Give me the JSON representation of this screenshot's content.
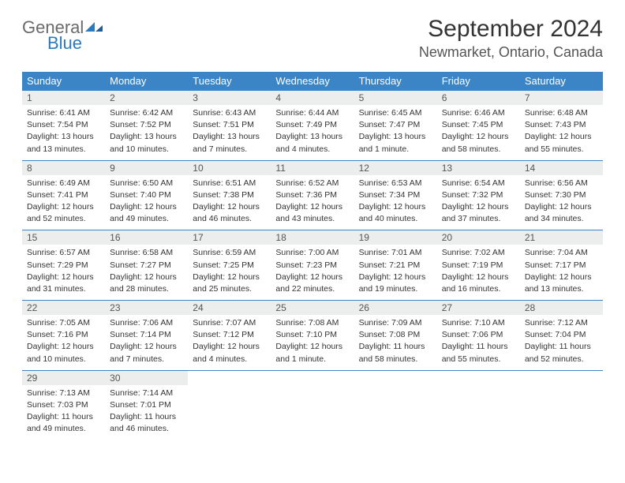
{
  "brand": {
    "general": "General",
    "blue": "Blue"
  },
  "title": "September 2024",
  "location": "Newmarket, Ontario, Canada",
  "weekdays": [
    "Sunday",
    "Monday",
    "Tuesday",
    "Wednesday",
    "Thursday",
    "Friday",
    "Saturday"
  ],
  "colors": {
    "header_bg": "#3b85c6",
    "header_text": "#ffffff",
    "daynum_bg": "#eceded",
    "border": "#3b85c6",
    "text": "#333333"
  },
  "weeks": [
    [
      {
        "n": "1",
        "sr": "Sunrise: 6:41 AM",
        "ss": "Sunset: 7:54 PM",
        "d1": "Daylight: 13 hours",
        "d2": "and 13 minutes."
      },
      {
        "n": "2",
        "sr": "Sunrise: 6:42 AM",
        "ss": "Sunset: 7:52 PM",
        "d1": "Daylight: 13 hours",
        "d2": "and 10 minutes."
      },
      {
        "n": "3",
        "sr": "Sunrise: 6:43 AM",
        "ss": "Sunset: 7:51 PM",
        "d1": "Daylight: 13 hours",
        "d2": "and 7 minutes."
      },
      {
        "n": "4",
        "sr": "Sunrise: 6:44 AM",
        "ss": "Sunset: 7:49 PM",
        "d1": "Daylight: 13 hours",
        "d2": "and 4 minutes."
      },
      {
        "n": "5",
        "sr": "Sunrise: 6:45 AM",
        "ss": "Sunset: 7:47 PM",
        "d1": "Daylight: 13 hours",
        "d2": "and 1 minute."
      },
      {
        "n": "6",
        "sr": "Sunrise: 6:46 AM",
        "ss": "Sunset: 7:45 PM",
        "d1": "Daylight: 12 hours",
        "d2": "and 58 minutes."
      },
      {
        "n": "7",
        "sr": "Sunrise: 6:48 AM",
        "ss": "Sunset: 7:43 PM",
        "d1": "Daylight: 12 hours",
        "d2": "and 55 minutes."
      }
    ],
    [
      {
        "n": "8",
        "sr": "Sunrise: 6:49 AM",
        "ss": "Sunset: 7:41 PM",
        "d1": "Daylight: 12 hours",
        "d2": "and 52 minutes."
      },
      {
        "n": "9",
        "sr": "Sunrise: 6:50 AM",
        "ss": "Sunset: 7:40 PM",
        "d1": "Daylight: 12 hours",
        "d2": "and 49 minutes."
      },
      {
        "n": "10",
        "sr": "Sunrise: 6:51 AM",
        "ss": "Sunset: 7:38 PM",
        "d1": "Daylight: 12 hours",
        "d2": "and 46 minutes."
      },
      {
        "n": "11",
        "sr": "Sunrise: 6:52 AM",
        "ss": "Sunset: 7:36 PM",
        "d1": "Daylight: 12 hours",
        "d2": "and 43 minutes."
      },
      {
        "n": "12",
        "sr": "Sunrise: 6:53 AM",
        "ss": "Sunset: 7:34 PM",
        "d1": "Daylight: 12 hours",
        "d2": "and 40 minutes."
      },
      {
        "n": "13",
        "sr": "Sunrise: 6:54 AM",
        "ss": "Sunset: 7:32 PM",
        "d1": "Daylight: 12 hours",
        "d2": "and 37 minutes."
      },
      {
        "n": "14",
        "sr": "Sunrise: 6:56 AM",
        "ss": "Sunset: 7:30 PM",
        "d1": "Daylight: 12 hours",
        "d2": "and 34 minutes."
      }
    ],
    [
      {
        "n": "15",
        "sr": "Sunrise: 6:57 AM",
        "ss": "Sunset: 7:29 PM",
        "d1": "Daylight: 12 hours",
        "d2": "and 31 minutes."
      },
      {
        "n": "16",
        "sr": "Sunrise: 6:58 AM",
        "ss": "Sunset: 7:27 PM",
        "d1": "Daylight: 12 hours",
        "d2": "and 28 minutes."
      },
      {
        "n": "17",
        "sr": "Sunrise: 6:59 AM",
        "ss": "Sunset: 7:25 PM",
        "d1": "Daylight: 12 hours",
        "d2": "and 25 minutes."
      },
      {
        "n": "18",
        "sr": "Sunrise: 7:00 AM",
        "ss": "Sunset: 7:23 PM",
        "d1": "Daylight: 12 hours",
        "d2": "and 22 minutes."
      },
      {
        "n": "19",
        "sr": "Sunrise: 7:01 AM",
        "ss": "Sunset: 7:21 PM",
        "d1": "Daylight: 12 hours",
        "d2": "and 19 minutes."
      },
      {
        "n": "20",
        "sr": "Sunrise: 7:02 AM",
        "ss": "Sunset: 7:19 PM",
        "d1": "Daylight: 12 hours",
        "d2": "and 16 minutes."
      },
      {
        "n": "21",
        "sr": "Sunrise: 7:04 AM",
        "ss": "Sunset: 7:17 PM",
        "d1": "Daylight: 12 hours",
        "d2": "and 13 minutes."
      }
    ],
    [
      {
        "n": "22",
        "sr": "Sunrise: 7:05 AM",
        "ss": "Sunset: 7:16 PM",
        "d1": "Daylight: 12 hours",
        "d2": "and 10 minutes."
      },
      {
        "n": "23",
        "sr": "Sunrise: 7:06 AM",
        "ss": "Sunset: 7:14 PM",
        "d1": "Daylight: 12 hours",
        "d2": "and 7 minutes."
      },
      {
        "n": "24",
        "sr": "Sunrise: 7:07 AM",
        "ss": "Sunset: 7:12 PM",
        "d1": "Daylight: 12 hours",
        "d2": "and 4 minutes."
      },
      {
        "n": "25",
        "sr": "Sunrise: 7:08 AM",
        "ss": "Sunset: 7:10 PM",
        "d1": "Daylight: 12 hours",
        "d2": "and 1 minute."
      },
      {
        "n": "26",
        "sr": "Sunrise: 7:09 AM",
        "ss": "Sunset: 7:08 PM",
        "d1": "Daylight: 11 hours",
        "d2": "and 58 minutes."
      },
      {
        "n": "27",
        "sr": "Sunrise: 7:10 AM",
        "ss": "Sunset: 7:06 PM",
        "d1": "Daylight: 11 hours",
        "d2": "and 55 minutes."
      },
      {
        "n": "28",
        "sr": "Sunrise: 7:12 AM",
        "ss": "Sunset: 7:04 PM",
        "d1": "Daylight: 11 hours",
        "d2": "and 52 minutes."
      }
    ],
    [
      {
        "n": "29",
        "sr": "Sunrise: 7:13 AM",
        "ss": "Sunset: 7:03 PM",
        "d1": "Daylight: 11 hours",
        "d2": "and 49 minutes."
      },
      {
        "n": "30",
        "sr": "Sunrise: 7:14 AM",
        "ss": "Sunset: 7:01 PM",
        "d1": "Daylight: 11 hours",
        "d2": "and 46 minutes."
      },
      {
        "empty": true
      },
      {
        "empty": true
      },
      {
        "empty": true
      },
      {
        "empty": true
      },
      {
        "empty": true
      }
    ]
  ]
}
